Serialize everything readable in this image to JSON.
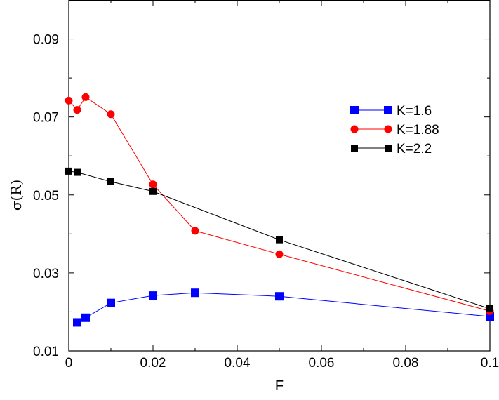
{
  "chart_data": {
    "type": "line",
    "title": "",
    "xlabel": "F",
    "ylabel": "σ(R)",
    "xlim": [
      0,
      0.1
    ],
    "ylim": [
      0.01,
      0.1
    ],
    "xticks": [
      0,
      0.02,
      0.04,
      0.06,
      0.08,
      0.1
    ],
    "xtick_labels": [
      "0",
      "0.02",
      "0.04",
      "0.06",
      "0.08",
      "0.1"
    ],
    "yticks": [
      0.01,
      0.03,
      0.05,
      0.07,
      0.09
    ],
    "ytick_labels": [
      "0.01",
      "0.03",
      "0.05",
      "0.07",
      "0.09"
    ],
    "grid": false,
    "legend_position": "right",
    "series": [
      {
        "name": "K=1.6",
        "color": "#0000ff",
        "marker": "square",
        "x": [
          0.002,
          0.004,
          0.01,
          0.02,
          0.03,
          0.05,
          0.1
        ],
        "y": [
          0.0173,
          0.0185,
          0.0223,
          0.0242,
          0.0249,
          0.024,
          0.0188
        ]
      },
      {
        "name": "K=1.88",
        "color": "#ff0000",
        "marker": "circle",
        "x": [
          0,
          0.002,
          0.004,
          0.01,
          0.02,
          0.03,
          0.05,
          0.1
        ],
        "y": [
          0.0742,
          0.0718,
          0.0751,
          0.0707,
          0.0527,
          0.0408,
          0.0348,
          0.0202
        ]
      },
      {
        "name": "K=2.2",
        "color": "#000000",
        "marker": "square-small",
        "x": [
          0,
          0.002,
          0.01,
          0.02,
          0.05,
          0.1
        ],
        "y": [
          0.0561,
          0.0558,
          0.0534,
          0.0509,
          0.0385,
          0.0208
        ]
      }
    ]
  }
}
